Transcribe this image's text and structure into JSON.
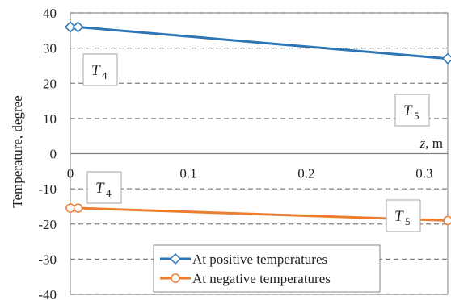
{
  "chart_data": {
    "type": "line",
    "xlabel_var": "z",
    "xlabel_unit": ", m",
    "ylabel": "Temperature, degree",
    "xlim": [
      0,
      0.32
    ],
    "ylim": [
      -40,
      40
    ],
    "x_ticks": [
      "0",
      "0.1",
      "0.2",
      "0.3"
    ],
    "x_tick_values": [
      0,
      0.1,
      0.2,
      0.3
    ],
    "y_ticks": [
      "40",
      "30",
      "20",
      "10",
      "0",
      "-10",
      "-20",
      "-30",
      "-40"
    ],
    "y_tick_values": [
      40,
      30,
      20,
      10,
      0,
      -10,
      -20,
      -30,
      -40
    ],
    "grid": "horizontal dashed",
    "series": [
      {
        "name": "At positive temperatures",
        "color": "#2E75B6",
        "marker": "diamond",
        "x": [
          0,
          0.0065,
          0.32
        ],
        "y": [
          36,
          36,
          27
        ]
      },
      {
        "name": "At negative temperatures",
        "color": "#ED7D31",
        "marker": "circle",
        "x": [
          0,
          0.0065,
          0.32
        ],
        "y": [
          -15.5,
          -15.5,
          -19
        ]
      }
    ],
    "annotations": [
      {
        "letter": "T",
        "sub": "4"
      },
      {
        "letter": "T",
        "sub": "5"
      },
      {
        "letter": "T",
        "sub": "4"
      },
      {
        "letter": "T",
        "sub": "5"
      }
    ],
    "legend_position": "bottom-center"
  }
}
